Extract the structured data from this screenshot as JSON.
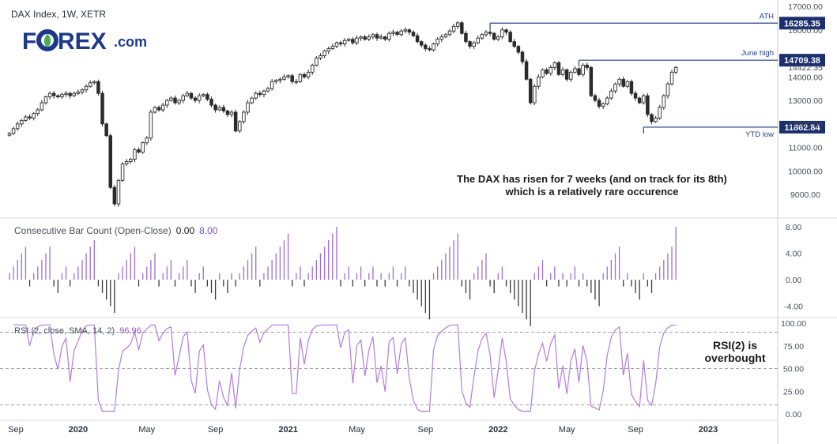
{
  "header": {
    "instrument": "DAX Index, 1W, XETR"
  },
  "logo": {
    "text_pre": "F",
    "text_post": "REX",
    "dotcom": ".com"
  },
  "annotation": {
    "line1": "The DAX has risen for 7 weeks (and on track for its 8th)",
    "line2": "which is a relatively rare occurence"
  },
  "rsi_note": {
    "line1": "RSI(2) is",
    "line2": "overbought"
  },
  "colors": {
    "bull": "#2b2b2b",
    "bear": "#2b2b2b",
    "bar_up": "#9c6fd6",
    "bar_down": "#3a3a3a",
    "rsi_line": "#b37ce0",
    "level_line": "#1e3f8a",
    "tag_bg": "#1a2f6e",
    "logo_blue": "#1d3a8a",
    "logo_green": "#4caf50"
  },
  "x_axis": {
    "labels": [
      {
        "text": "Sep",
        "t": 0
      },
      {
        "text": "2020",
        "t": 17,
        "bold": true
      },
      {
        "text": "May",
        "t": 34
      },
      {
        "text": "Sep",
        "t": 51
      },
      {
        "text": "2021",
        "t": 69,
        "bold": true
      },
      {
        "text": "May",
        "t": 86
      },
      {
        "text": "Sep",
        "t": 103
      },
      {
        "text": "2022",
        "t": 121,
        "bold": true
      },
      {
        "text": "May",
        "t": 138
      },
      {
        "text": "Sep",
        "t": 155
      },
      {
        "text": "2023",
        "t": 173,
        "bold": true
      }
    ]
  },
  "chart_data": [
    {
      "type": "candlestick",
      "title": "DAX Index, 1W, XETR",
      "ylim": [
        8200,
        17000
      ],
      "yticks": [
        9000,
        10000,
        11000,
        12000,
        13000,
        14000,
        16000,
        17000
      ],
      "levels": [
        {
          "label": "ATH",
          "value": 16285.35,
          "tag": "16285.35",
          "start_t": 119
        },
        {
          "label": "June high",
          "value": 14709.38,
          "tag": "14709.38",
          "start_t": 141
        },
        {
          "label": "YTD low",
          "value": 11862.84,
          "tag": "11862.84",
          "start_t": 157
        }
      ],
      "last_price": "14422.35",
      "closes": [
        11600,
        11800,
        12000,
        12150,
        12300,
        12250,
        12450,
        12600,
        12900,
        13150,
        13300,
        13200,
        13150,
        13250,
        13300,
        13200,
        13300,
        13350,
        13450,
        13600,
        13750,
        13800,
        13300,
        12000,
        11500,
        9300,
        8600,
        9600,
        10300,
        10400,
        10500,
        10900,
        10800,
        11200,
        11400,
        12500,
        12700,
        12600,
        12800,
        13000,
        13100,
        12900,
        13000,
        13200,
        13300,
        13100,
        13000,
        13200,
        13250,
        13050,
        12800,
        12600,
        12700,
        12550,
        12400,
        12500,
        11700,
        12100,
        12500,
        12900,
        13100,
        13300,
        13250,
        13400,
        13500,
        13800,
        13850,
        13900,
        14000,
        14050,
        13800,
        13800,
        14100,
        14000,
        14200,
        14500,
        14800,
        14900,
        15100,
        15200,
        15300,
        15450,
        15400,
        15550,
        15600,
        15450,
        15650,
        15700,
        15600,
        15700,
        15800,
        15650,
        15700,
        15600,
        15850,
        15900,
        15800,
        15950,
        16000,
        15900,
        15750,
        15500,
        15350,
        15200,
        15150,
        15400,
        15600,
        15700,
        15800,
        15950,
        16150,
        16300,
        15850,
        15500,
        15300,
        15450,
        15650,
        15800,
        15900,
        15850,
        15600,
        15700,
        16000,
        15900,
        15500,
        15300,
        15050,
        14650,
        13900,
        12900,
        13600,
        14000,
        14300,
        14150,
        14400,
        14600,
        14100,
        14300,
        13900,
        14200,
        14350,
        14100,
        14500,
        14400,
        13200,
        13000,
        12750,
        12850,
        13100,
        13400,
        13700,
        13900,
        13600,
        13800,
        13300,
        13100,
        12900,
        13200,
        12400,
        12100,
        12250,
        12700,
        13200,
        13700,
        14200,
        14400
      ]
    },
    {
      "type": "bar",
      "title": "Consecutive Bar Count (Open-Close)",
      "values_text": [
        "0.00",
        "8.00"
      ],
      "ylim": [
        -5,
        8.5
      ],
      "yticks": [
        8,
        4,
        0,
        -4
      ],
      "ytick_labels": [
        "8.00",
        "4.00",
        "0.00",
        "-4.00"
      ]
    },
    {
      "type": "line",
      "title": "RSI (2, close, SMA, 14, 2)",
      "last_value": "96.96",
      "ylim": [
        0,
        100
      ],
      "yticks": [
        100,
        75,
        50,
        25,
        0
      ],
      "ytick_labels": [
        "100.00",
        "75.00",
        "50.00",
        "25.00",
        "0.00"
      ],
      "bands": [
        90,
        50,
        10
      ]
    }
  ]
}
